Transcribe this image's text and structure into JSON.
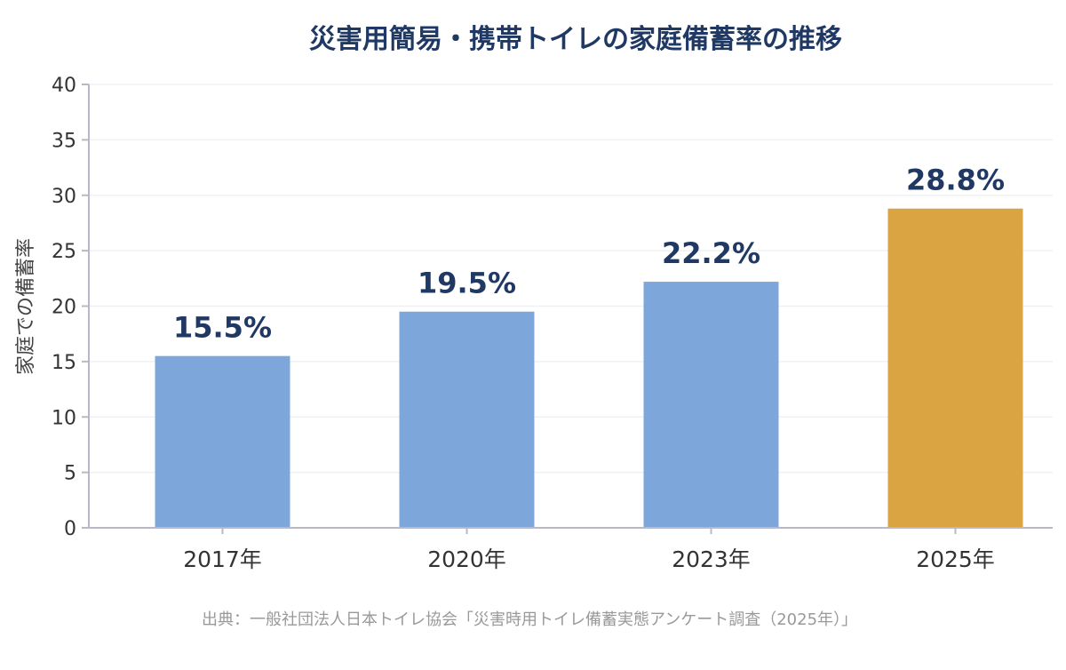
{
  "chart_data": {
    "type": "bar",
    "title": "災害用簡易・携帯トイレの家庭備蓄率の推移",
    "ylabel": "家庭での備蓄率",
    "xlabel": "",
    "categories": [
      "2017年",
      "2020年",
      "2023年",
      "2025年"
    ],
    "values": [
      15.5,
      19.5,
      22.2,
      28.8
    ],
    "data_labels": [
      "15.5%",
      "19.5%",
      "22.2%",
      "28.8%"
    ],
    "ylim": [
      0,
      40
    ],
    "yticks": [
      0,
      5,
      10,
      15,
      20,
      25,
      30,
      35,
      40
    ],
    "grid": true,
    "legend": "none",
    "colors": {
      "default_bar": "#7da7db",
      "highlight_bar": "#d9a441",
      "title": "#1f3864",
      "data_label": "#1f3864"
    },
    "highlight_index": 3
  },
  "source": "出典：一般社団法人日本トイレ協会「災害時用トイレ備蓄実態アンケート調査（2025年）」"
}
